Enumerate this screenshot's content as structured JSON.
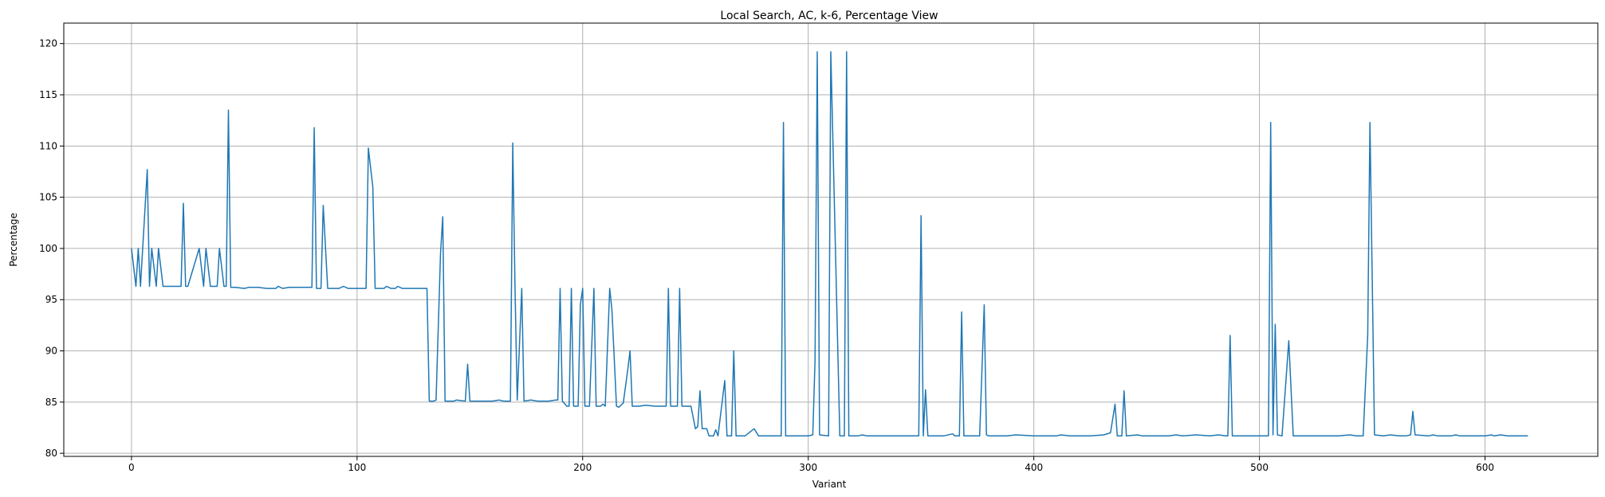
{
  "chart_data": {
    "type": "line",
    "title": "Local Search, AC, k-6, Percentage View",
    "xlabel": "Variant",
    "ylabel": "Percentage",
    "xlim": [
      -30,
      650
    ],
    "ylim": [
      79.7,
      122
    ],
    "xticks": [
      0,
      100,
      200,
      300,
      400,
      500,
      600
    ],
    "yticks": [
      80,
      85,
      90,
      95,
      100,
      105,
      110,
      115,
      120
    ],
    "grid": true,
    "legend": "none",
    "series": [
      {
        "color": "#1f77b4",
        "points": [
          [
            0,
            100
          ],
          [
            2,
            96.3
          ],
          [
            3,
            100
          ],
          [
            4,
            96.3
          ],
          [
            7,
            107.7
          ],
          [
            8,
            96.3
          ],
          [
            9,
            100
          ],
          [
            11,
            96.3
          ],
          [
            12,
            100
          ],
          [
            14,
            96.3
          ],
          [
            20,
            96.3
          ],
          [
            22,
            96.3
          ],
          [
            23,
            104.4
          ],
          [
            24,
            96.3
          ],
          [
            25,
            96.3
          ],
          [
            30,
            100
          ],
          [
            32,
            96.3
          ],
          [
            33,
            100
          ],
          [
            35,
            96.3
          ],
          [
            38,
            96.3
          ],
          [
            39,
            100
          ],
          [
            41,
            96.3
          ],
          [
            42,
            96.3
          ],
          [
            43,
            113.5
          ],
          [
            44,
            96.2
          ],
          [
            46,
            96.2
          ],
          [
            50,
            96.1
          ],
          [
            52,
            96.2
          ],
          [
            56,
            96.2
          ],
          [
            60,
            96.1
          ],
          [
            64,
            96.1
          ],
          [
            65,
            96.3
          ],
          [
            67,
            96.1
          ],
          [
            70,
            96.2
          ],
          [
            80,
            96.2
          ],
          [
            81,
            111.8
          ],
          [
            82,
            96.1
          ],
          [
            84,
            96.1
          ],
          [
            85,
            104.2
          ],
          [
            87,
            96.1
          ],
          [
            92,
            96.1
          ],
          [
            94,
            96.3
          ],
          [
            96,
            96.1
          ],
          [
            100,
            96.1
          ],
          [
            104,
            96.1
          ],
          [
            105,
            109.8
          ],
          [
            107,
            106
          ],
          [
            108,
            96.1
          ],
          [
            112,
            96.1
          ],
          [
            113,
            96.3
          ],
          [
            115,
            96.1
          ],
          [
            117,
            96.1
          ],
          [
            118,
            96.3
          ],
          [
            120,
            96.1
          ],
          [
            131,
            96.1
          ],
          [
            132,
            85.1
          ],
          [
            134,
            85.1
          ],
          [
            135,
            85.2
          ],
          [
            137,
            99.5
          ],
          [
            138,
            103.1
          ],
          [
            139,
            85.1
          ],
          [
            143,
            85.1
          ],
          [
            144,
            85.2
          ],
          [
            148,
            85.1
          ],
          [
            149,
            88.7
          ],
          [
            150,
            85.1
          ],
          [
            160,
            85.1
          ],
          [
            163,
            85.2
          ],
          [
            165,
            85.1
          ],
          [
            168,
            85.1
          ],
          [
            169,
            110.3
          ],
          [
            170,
            96.3
          ],
          [
            171,
            85.2
          ],
          [
            173,
            96.1
          ],
          [
            174,
            85.1
          ],
          [
            177,
            85.2
          ],
          [
            180,
            85.1
          ],
          [
            185,
            85.1
          ],
          [
            188,
            85.2
          ],
          [
            189,
            85.2
          ],
          [
            190,
            96.1
          ],
          [
            191,
            85.1
          ],
          [
            193,
            84.6
          ],
          [
            194,
            84.6
          ],
          [
            195,
            96.1
          ],
          [
            196,
            84.6
          ],
          [
            198,
            84.6
          ],
          [
            199,
            94.5
          ],
          [
            200,
            96.1
          ],
          [
            201,
            84.6
          ],
          [
            203,
            84.6
          ],
          [
            205,
            96.1
          ],
          [
            206,
            84.6
          ],
          [
            208,
            84.6
          ],
          [
            209,
            84.8
          ],
          [
            210,
            84.6
          ],
          [
            212,
            96.1
          ],
          [
            213,
            94
          ],
          [
            215,
            84.6
          ],
          [
            216,
            84.5
          ],
          [
            218,
            84.9
          ],
          [
            220,
            88.2
          ],
          [
            221,
            90
          ],
          [
            222,
            84.6
          ],
          [
            225,
            84.6
          ],
          [
            228,
            84.7
          ],
          [
            232,
            84.6
          ],
          [
            237,
            84.6
          ],
          [
            238,
            96.1
          ],
          [
            239,
            84.6
          ],
          [
            242,
            84.6
          ],
          [
            243,
            96.1
          ],
          [
            244,
            84.6
          ],
          [
            248,
            84.6
          ],
          [
            250,
            82.4
          ],
          [
            251,
            82.6
          ],
          [
            252,
            86.1
          ],
          [
            253,
            82.4
          ],
          [
            255,
            82.4
          ],
          [
            256,
            81.7
          ],
          [
            258,
            81.7
          ],
          [
            259,
            82.3
          ],
          [
            260,
            81.7
          ],
          [
            263,
            87.1
          ],
          [
            264,
            81.7
          ],
          [
            266,
            81.7
          ],
          [
            267,
            90
          ],
          [
            268,
            81.7
          ],
          [
            272,
            81.7
          ],
          [
            276,
            82.4
          ],
          [
            278,
            81.7
          ],
          [
            288,
            81.7
          ],
          [
            289,
            112.3
          ],
          [
            290,
            81.7
          ],
          [
            300,
            81.7
          ],
          [
            302,
            81.8
          ],
          [
            303,
            89
          ],
          [
            304,
            119.2
          ],
          [
            305,
            81.8
          ],
          [
            309,
            81.7
          ],
          [
            310,
            119.2
          ],
          [
            314,
            81.7
          ],
          [
            316,
            81.7
          ],
          [
            317,
            119.2
          ],
          [
            318,
            81.7
          ],
          [
            322,
            81.7
          ],
          [
            324,
            81.8
          ],
          [
            326,
            81.7
          ],
          [
            340,
            81.7
          ],
          [
            349,
            81.7
          ],
          [
            350,
            103.2
          ],
          [
            351,
            81.7
          ],
          [
            352,
            86.2
          ],
          [
            353,
            81.7
          ],
          [
            360,
            81.7
          ],
          [
            364,
            81.9
          ],
          [
            365,
            81.7
          ],
          [
            367,
            81.7
          ],
          [
            368,
            93.8
          ],
          [
            369,
            81.7
          ],
          [
            376,
            81.7
          ],
          [
            378,
            94.5
          ],
          [
            379,
            81.8
          ],
          [
            380,
            81.7
          ],
          [
            388,
            81.7
          ],
          [
            392,
            81.8
          ],
          [
            400,
            81.7
          ],
          [
            410,
            81.7
          ],
          [
            412,
            81.8
          ],
          [
            416,
            81.7
          ],
          [
            425,
            81.7
          ],
          [
            431,
            81.8
          ],
          [
            434,
            82
          ],
          [
            436,
            84.8
          ],
          [
            437,
            81.7
          ],
          [
            439,
            81.7
          ],
          [
            440,
            86.1
          ],
          [
            441,
            81.7
          ],
          [
            446,
            81.8
          ],
          [
            448,
            81.7
          ],
          [
            460,
            81.7
          ],
          [
            463,
            81.8
          ],
          [
            466,
            81.7
          ],
          [
            472,
            81.8
          ],
          [
            478,
            81.7
          ],
          [
            482,
            81.8
          ],
          [
            485,
            81.7
          ],
          [
            486,
            81.7
          ],
          [
            487,
            91.5
          ],
          [
            488,
            81.7
          ],
          [
            495,
            81.7
          ],
          [
            504,
            81.7
          ],
          [
            505,
            112.3
          ],
          [
            506,
            81.8
          ],
          [
            507,
            92.6
          ],
          [
            508,
            81.8
          ],
          [
            510,
            81.7
          ],
          [
            513,
            91
          ],
          [
            515,
            81.7
          ],
          [
            520,
            81.7
          ],
          [
            525,
            81.7
          ],
          [
            535,
            81.7
          ],
          [
            540,
            81.8
          ],
          [
            543,
            81.7
          ],
          [
            546,
            81.7
          ],
          [
            548,
            91.5
          ],
          [
            549,
            112.3
          ],
          [
            551,
            81.8
          ],
          [
            555,
            81.7
          ],
          [
            558,
            81.8
          ],
          [
            562,
            81.7
          ],
          [
            565,
            81.7
          ],
          [
            567,
            81.8
          ],
          [
            568,
            84.1
          ],
          [
            569,
            81.8
          ],
          [
            575,
            81.7
          ],
          [
            577,
            81.8
          ],
          [
            579,
            81.7
          ],
          [
            585,
            81.7
          ],
          [
            587,
            81.8
          ],
          [
            589,
            81.7
          ],
          [
            600,
            81.7
          ],
          [
            603,
            81.8
          ],
          [
            604,
            81.7
          ],
          [
            607,
            81.8
          ],
          [
            610,
            81.7
          ],
          [
            619,
            81.7
          ]
        ]
      }
    ]
  }
}
